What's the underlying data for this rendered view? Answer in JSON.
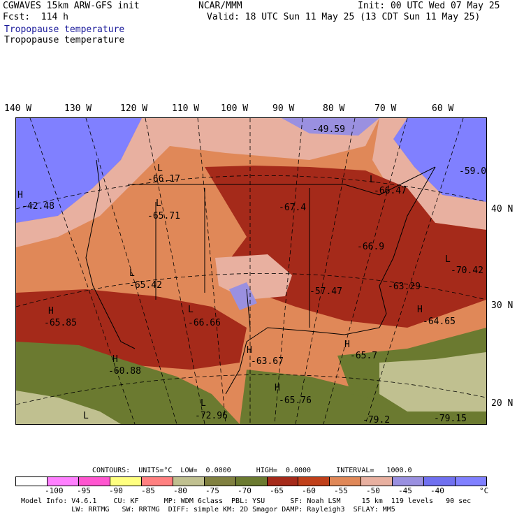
{
  "header": {
    "left_line1": "CGWAVES 15km ARW-GFS init",
    "left_line2": "Fcst:  114 h",
    "center_line1": "NCAR/MMM",
    "right_line1": "Init: 00 UTC Wed 07 May 25",
    "right_line2": "Valid: 18 UTC Sun 11 May 25 (13 CDT Sun 11 May 25)",
    "field_title_1": "Tropopause temperature",
    "field_title_2": "Tropopause temperature"
  },
  "lon_labels": [
    "140 W",
    "130 W",
    "120 W",
    "110 W",
    "100 W",
    "90 W",
    "80 W",
    "70 W",
    "60 W"
  ],
  "lat_labels": [
    "40 N",
    "30 N",
    "20 N"
  ],
  "map_labels": [
    {
      "t": "H",
      "v": "-42.48"
    },
    {
      "t": "L",
      "v": "-66.17"
    },
    {
      "t": "L",
      "v": "-65.71"
    },
    {
      "t": "-49.59"
    },
    {
      "t": "-59.0"
    },
    {
      "t": "L",
      "v": "-66.47"
    },
    {
      "t": "-67.4"
    },
    {
      "t": "-66.9"
    },
    {
      "t": "L",
      "v": "-70.42"
    },
    {
      "t": "L",
      "v": "-65.42"
    },
    {
      "t": "-57.47"
    },
    {
      "t": "-63.29"
    },
    {
      "t": "H",
      "v": "-65.85"
    },
    {
      "t": "L",
      "v": "-66.66"
    },
    {
      "t": "H",
      "v": "-64.65"
    },
    {
      "t": "H",
      "v": "-60.88"
    },
    {
      "t": "H",
      "v": "-63.67"
    },
    {
      "t": "H",
      "v": "-65.7"
    },
    {
      "t": "H",
      "v": "-65.76"
    },
    {
      "t": "L",
      "v": "-72.96"
    },
    {
      "t": "L"
    },
    {
      "t": "-79.2"
    },
    {
      "t": "-79.15"
    }
  ],
  "legend": {
    "header": "CONTOURS:  UNITS=°C  LOW=  0.0000      HIGH=  0.0000      INTERVAL=   1000.0",
    "colors": [
      "#ffffff",
      "#ff80ff",
      "#ff55d0",
      "#ffff80",
      "#ff8080",
      "#c0c090",
      "#808040",
      "#6b7a30",
      "#a52a1a",
      "#c0401a",
      "#e08858",
      "#e8b0a0",
      "#9a90e0",
      "#7070f0",
      "#8080ff"
    ],
    "ticks": [
      "-100",
      "-95",
      "-90",
      "-85",
      "-80",
      "-75",
      "-70",
      "-65",
      "-60",
      "-55",
      "-50",
      "-45",
      "-40",
      "°C"
    ]
  },
  "footer": {
    "line1": "Model Info: V4.6.1    CU: KF      MP: WDM 6class  PBL: YSU      SF: Noah LSM     15 km  119 levels   90 sec",
    "line2": "            LW: RRTMG   SW: RRTMG  DIFF: simple KM: 2D Smagor DAMP: Rayleigh3  SFLAY: MM5"
  }
}
